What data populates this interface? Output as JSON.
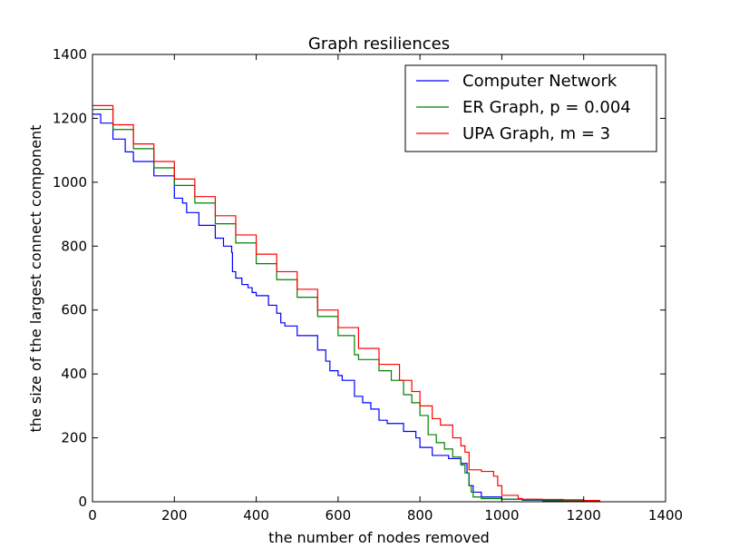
{
  "chart_data": {
    "type": "line",
    "title": "Graph resiliences",
    "xlabel": "the number of nodes removed",
    "ylabel": "the size of the largest connect component",
    "xlim": [
      0,
      1400
    ],
    "ylim": [
      0,
      1400
    ],
    "xticks": [
      0,
      200,
      400,
      600,
      800,
      1000,
      1200,
      1400
    ],
    "yticks": [
      0,
      200,
      400,
      600,
      800,
      1000,
      1200,
      1400
    ],
    "grid": false,
    "legend_position": "top-right",
    "series": [
      {
        "name": "Computer Network",
        "color": "#0000ff",
        "x": [
          0,
          20,
          50,
          80,
          100,
          150,
          200,
          220,
          230,
          260,
          300,
          320,
          340,
          342,
          350,
          365,
          380,
          390,
          400,
          430,
          450,
          460,
          470,
          500,
          550,
          570,
          580,
          600,
          610,
          640,
          660,
          680,
          700,
          720,
          760,
          790,
          800,
          830,
          870,
          900,
          915,
          920,
          930,
          950,
          1000,
          1050,
          1100,
          1200,
          1239
        ],
        "y": [
          1213,
          1185,
          1135,
          1095,
          1065,
          1020,
          950,
          935,
          905,
          865,
          825,
          800,
          780,
          720,
          700,
          680,
          670,
          655,
          645,
          615,
          590,
          560,
          550,
          520,
          475,
          440,
          410,
          395,
          380,
          330,
          310,
          290,
          255,
          245,
          220,
          200,
          170,
          145,
          135,
          120,
          90,
          50,
          30,
          15,
          8,
          5,
          3,
          2,
          1
        ]
      },
      {
        "name": "ER Graph, p = 0.004",
        "color": "#008000",
        "x": [
          0,
          50,
          100,
          150,
          200,
          250,
          300,
          350,
          400,
          450,
          500,
          550,
          600,
          640,
          650,
          700,
          730,
          760,
          780,
          800,
          820,
          840,
          860,
          880,
          900,
          910,
          920,
          925,
          930,
          950,
          1000,
          1050,
          1100,
          1150,
          1200,
          1239
        ],
        "y": [
          1228,
          1165,
          1105,
          1045,
          990,
          935,
          870,
          810,
          745,
          695,
          640,
          580,
          520,
          460,
          445,
          410,
          380,
          335,
          310,
          270,
          210,
          185,
          165,
          140,
          115,
          90,
          50,
          30,
          15,
          10,
          8,
          6,
          5,
          4,
          3,
          2
        ]
      },
      {
        "name": "UPA Graph, m = 3",
        "color": "#ff0000",
        "x": [
          0,
          50,
          100,
          150,
          200,
          250,
          300,
          350,
          400,
          450,
          500,
          550,
          600,
          650,
          700,
          750,
          780,
          800,
          830,
          850,
          880,
          900,
          910,
          920,
          950,
          980,
          990,
          1000,
          1040,
          1050,
          1100,
          1150,
          1200,
          1239
        ],
        "y": [
          1240,
          1180,
          1120,
          1065,
          1010,
          955,
          895,
          835,
          775,
          720,
          665,
          600,
          545,
          480,
          430,
          380,
          345,
          300,
          260,
          240,
          200,
          175,
          155,
          100,
          95,
          80,
          50,
          20,
          10,
          8,
          7,
          6,
          4,
          3
        ]
      }
    ]
  }
}
